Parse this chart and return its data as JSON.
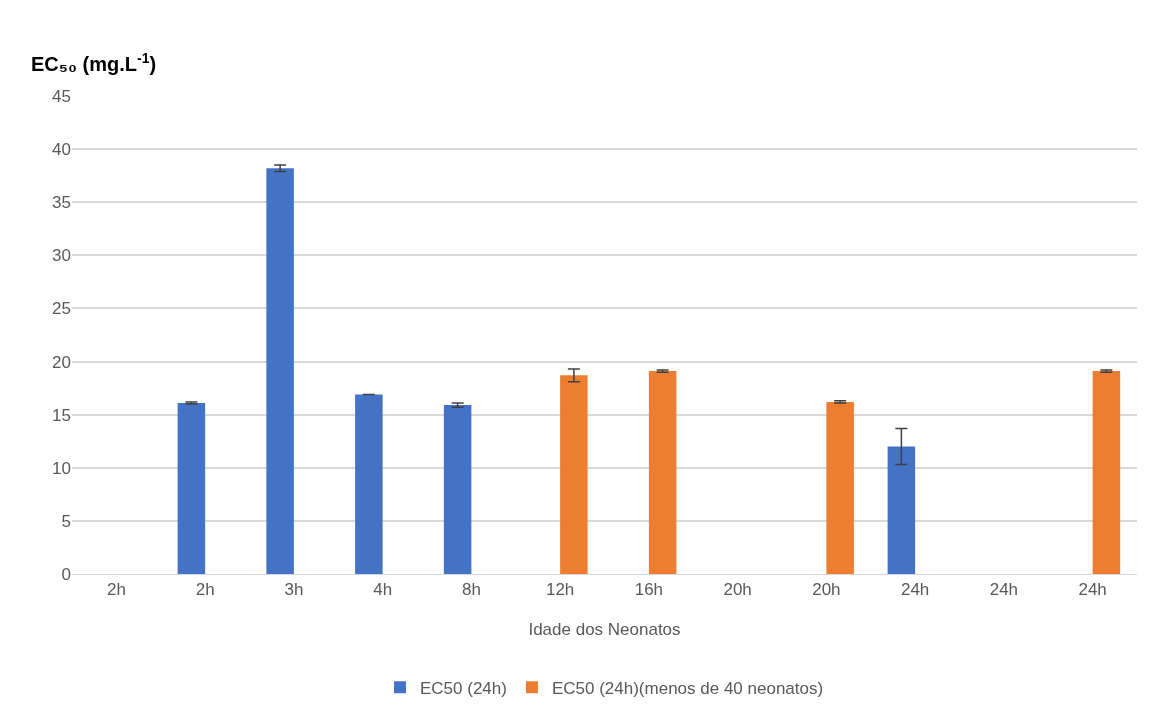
{
  "chart_data": {
    "type": "bar",
    "ylabel": "EC₅₀ (mg.L$^{-1}$)",
    "xlabel": "Idade dos Neonatos",
    "categories": [
      "2h",
      "2h",
      "3h",
      "4h",
      "8h",
      "12h",
      "16h",
      "20h",
      "20h",
      "24h",
      "24h",
      "24h"
    ],
    "series": [
      {
        "name": "EC50 (24h)",
        "color": "#4472c4",
        "values": [
          null,
          16.1,
          38.2,
          16.9,
          15.9,
          null,
          null,
          null,
          null,
          12.0,
          null,
          null
        ],
        "errors": [
          null,
          0.1,
          0.3,
          null,
          0.2,
          null,
          null,
          null,
          null,
          1.7,
          null,
          null
        ]
      },
      {
        "name": "EC50 (24h)(menos de 40 neonatos)",
        "color": "#ed7d31",
        "values": [
          null,
          null,
          null,
          null,
          null,
          18.7,
          19.1,
          null,
          16.2,
          null,
          null,
          19.1
        ],
        "errors": [
          null,
          null,
          null,
          null,
          null,
          0.6,
          0.1,
          null,
          0.1,
          null,
          null,
          0.1
        ]
      }
    ],
    "ylim": [
      0,
      45
    ],
    "yticks": [
      0,
      5,
      10,
      15,
      20,
      25,
      30,
      35,
      40,
      45
    ],
    "grid": "y",
    "legend": "bottom"
  }
}
